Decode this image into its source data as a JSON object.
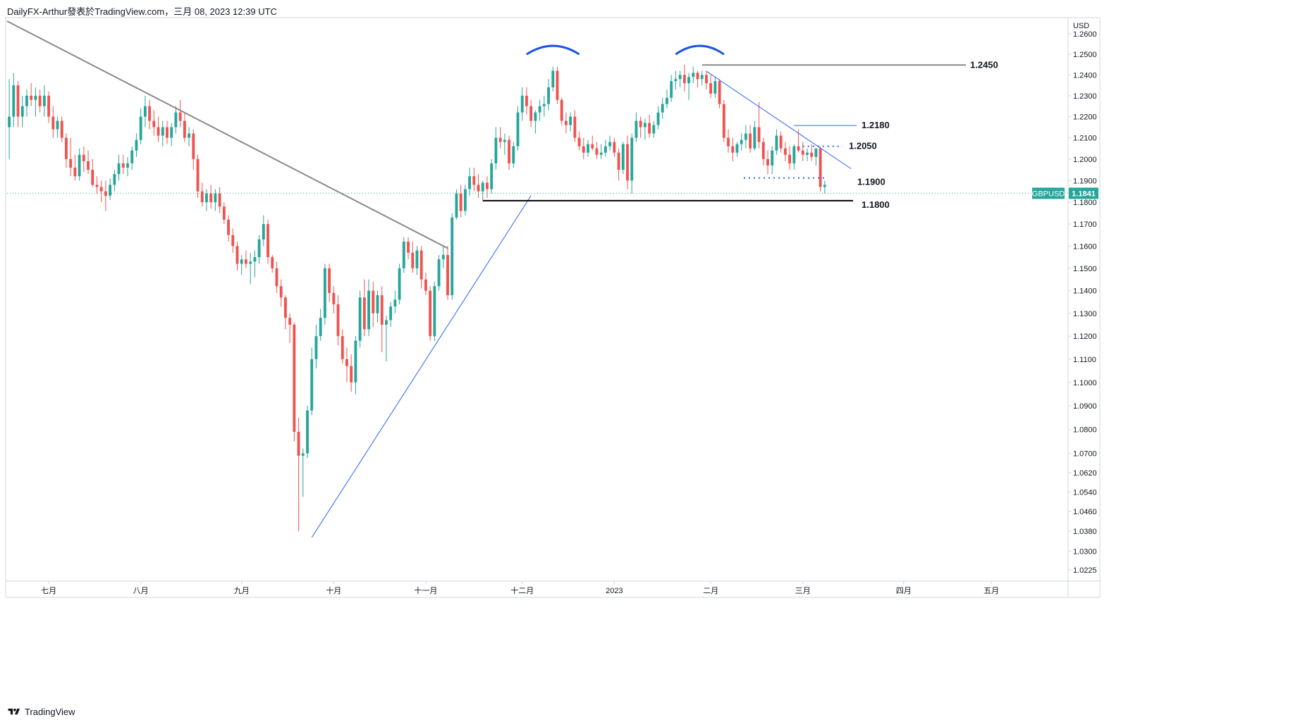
{
  "header": {
    "text": "DailyFX-Arthur發表於TradingView.com，三月 08, 2023 12:39 UTC"
  },
  "branding": {
    "name": "TradingView",
    "icon": "tradingview-logo-icon"
  },
  "colors": {
    "up": "#26a69a",
    "down": "#ef5350",
    "trend_grey": "#8a8a8a",
    "trend_blue": "#2962ff",
    "level_blue": "#2962ff",
    "support_black": "#000000",
    "price_tag": "#26a69a",
    "grid_axis": "#d1d4dc"
  },
  "chart_data": {
    "type": "candlestick",
    "symbol": "GBPUSD",
    "currency_label": "USD",
    "last_price": "1.1841",
    "price_axis": {
      "ticks": [
        "1.2600",
        "1.2500",
        "1.2400",
        "1.2300",
        "1.2200",
        "1.2100",
        "1.2000",
        "1.1900",
        "1.1800",
        "1.1700",
        "1.1600",
        "1.1500",
        "1.1400",
        "1.1300",
        "1.1200",
        "1.1100",
        "1.1000",
        "1.0900",
        "1.0800",
        "1.0700",
        "1.0620",
        "1.0540",
        "1.0460",
        "1.0380",
        "1.0300",
        "1.0225"
      ],
      "range": [
        1.018,
        1.268
      ],
      "scale": "log"
    },
    "time_axis": {
      "labels": [
        "七月",
        "八月",
        "九月",
        "十月",
        "十一月",
        "十二月",
        "2023",
        "二月",
        "三月",
        "四月",
        "五月"
      ],
      "label_index": [
        9,
        30,
        53,
        74,
        95,
        117,
        138,
        160,
        181,
        204,
        224
      ],
      "total_slots": 242
    },
    "levels": [
      {
        "label": "1.2450",
        "price": 1.2448
      },
      {
        "label": "1.2180",
        "price": 1.2158
      },
      {
        "label": "1.2050",
        "price": 1.206
      },
      {
        "label": "1.1900",
        "price": 1.1912
      },
      {
        "label": "1.1800",
        "price": 1.1807
      }
    ],
    "candles": [
      [
        1.215,
        1.238,
        1.2,
        1.22
      ],
      [
        1.22,
        1.241,
        1.215,
        1.235
      ],
      [
        1.235,
        1.237,
        1.215,
        1.22
      ],
      [
        1.22,
        1.23,
        1.215,
        1.225
      ],
      [
        1.225,
        1.233,
        1.22,
        1.23
      ],
      [
        1.23,
        1.236,
        1.225,
        1.228
      ],
      [
        1.228,
        1.234,
        1.22,
        1.23
      ],
      [
        1.23,
        1.233,
        1.222,
        1.225
      ],
      [
        1.225,
        1.235,
        1.22,
        1.23
      ],
      [
        1.23,
        1.232,
        1.217,
        1.22
      ],
      [
        1.22,
        1.225,
        1.21,
        1.214
      ],
      [
        1.214,
        1.22,
        1.21,
        1.218
      ],
      [
        1.218,
        1.22,
        1.208,
        1.21
      ],
      [
        1.21,
        1.212,
        1.196,
        1.2
      ],
      [
        1.2,
        1.21,
        1.192,
        1.196
      ],
      [
        1.196,
        1.202,
        1.19,
        1.192
      ],
      [
        1.192,
        1.205,
        1.19,
        1.202
      ],
      [
        1.202,
        1.206,
        1.194,
        1.199
      ],
      [
        1.199,
        1.204,
        1.193,
        1.195
      ],
      [
        1.195,
        1.2,
        1.187,
        1.188
      ],
      [
        1.188,
        1.192,
        1.184,
        1.187
      ],
      [
        1.187,
        1.19,
        1.18,
        1.185
      ],
      [
        1.185,
        1.19,
        1.176,
        1.183
      ],
      [
        1.183,
        1.191,
        1.181,
        1.188
      ],
      [
        1.188,
        1.195,
        1.185,
        1.193
      ],
      [
        1.193,
        1.202,
        1.19,
        1.198
      ],
      [
        1.198,
        1.202,
        1.193,
        1.196
      ],
      [
        1.196,
        1.201,
        1.192,
        1.198
      ],
      [
        1.198,
        1.206,
        1.195,
        1.204
      ],
      [
        1.204,
        1.212,
        1.201,
        1.209
      ],
      [
        1.209,
        1.224,
        1.207,
        1.22
      ],
      [
        1.22,
        1.23,
        1.215,
        1.225
      ],
      [
        1.225,
        1.228,
        1.214,
        1.218
      ],
      [
        1.218,
        1.223,
        1.211,
        1.215
      ],
      [
        1.215,
        1.22,
        1.208,
        1.211
      ],
      [
        1.211,
        1.218,
        1.206,
        1.215
      ],
      [
        1.215,
        1.218,
        1.207,
        1.21
      ],
      [
        1.21,
        1.217,
        1.206,
        1.215
      ],
      [
        1.215,
        1.225,
        1.212,
        1.222
      ],
      [
        1.222,
        1.228,
        1.215,
        1.218
      ],
      [
        1.218,
        1.222,
        1.208,
        1.21
      ],
      [
        1.21,
        1.215,
        1.206,
        1.212
      ],
      [
        1.212,
        1.214,
        1.195,
        1.2
      ],
      [
        1.2,
        1.202,
        1.182,
        1.185
      ],
      [
        1.185,
        1.189,
        1.178,
        1.18
      ],
      [
        1.18,
        1.186,
        1.176,
        1.184
      ],
      [
        1.184,
        1.188,
        1.177,
        1.18
      ],
      [
        1.18,
        1.186,
        1.176,
        1.184
      ],
      [
        1.184,
        1.187,
        1.175,
        1.178
      ],
      [
        1.178,
        1.18,
        1.17,
        1.172
      ],
      [
        1.172,
        1.174,
        1.162,
        1.165
      ],
      [
        1.165,
        1.168,
        1.157,
        1.16
      ],
      [
        1.16,
        1.162,
        1.149,
        1.152
      ],
      [
        1.152,
        1.156,
        1.147,
        1.154
      ],
      [
        1.154,
        1.158,
        1.15,
        1.152
      ],
      [
        1.152,
        1.157,
        1.143,
        1.153
      ],
      [
        1.153,
        1.158,
        1.146,
        1.155
      ],
      [
        1.155,
        1.165,
        1.152,
        1.163
      ],
      [
        1.163,
        1.174,
        1.16,
        1.17
      ],
      [
        1.17,
        1.172,
        1.152,
        1.155
      ],
      [
        1.155,
        1.156,
        1.148,
        1.15
      ],
      [
        1.15,
        1.153,
        1.139,
        1.142
      ],
      [
        1.142,
        1.145,
        1.133,
        1.137
      ],
      [
        1.137,
        1.138,
        1.123,
        1.128
      ],
      [
        1.128,
        1.13,
        1.117,
        1.125
      ],
      [
        1.125,
        1.126,
        1.075,
        1.079
      ],
      [
        1.079,
        1.085,
        1.038,
        1.069
      ],
      [
        1.069,
        1.072,
        1.052,
        1.07
      ],
      [
        1.07,
        1.09,
        1.068,
        1.088
      ],
      [
        1.088,
        1.115,
        1.086,
        1.11
      ],
      [
        1.11,
        1.125,
        1.106,
        1.12
      ],
      [
        1.12,
        1.132,
        1.118,
        1.128
      ],
      [
        1.128,
        1.152,
        1.125,
        1.15
      ],
      [
        1.15,
        1.152,
        1.135,
        1.139
      ],
      [
        1.139,
        1.142,
        1.13,
        1.134
      ],
      [
        1.134,
        1.138,
        1.116,
        1.12
      ],
      [
        1.12,
        1.123,
        1.108,
        1.11
      ],
      [
        1.11,
        1.115,
        1.1,
        1.107
      ],
      [
        1.107,
        1.112,
        1.096,
        1.1
      ],
      [
        1.1,
        1.12,
        1.095,
        1.118
      ],
      [
        1.118,
        1.14,
        1.115,
        1.137
      ],
      [
        1.137,
        1.145,
        1.12,
        1.123
      ],
      [
        1.123,
        1.145,
        1.12,
        1.14
      ],
      [
        1.14,
        1.144,
        1.124,
        1.13
      ],
      [
        1.13,
        1.14,
        1.126,
        1.138
      ],
      [
        1.138,
        1.142,
        1.113,
        1.125
      ],
      [
        1.125,
        1.129,
        1.109,
        1.127
      ],
      [
        1.127,
        1.135,
        1.124,
        1.133
      ],
      [
        1.133,
        1.14,
        1.13,
        1.136
      ],
      [
        1.136,
        1.152,
        1.134,
        1.15
      ],
      [
        1.15,
        1.164,
        1.148,
        1.162
      ],
      [
        1.162,
        1.164,
        1.154,
        1.157
      ],
      [
        1.157,
        1.162,
        1.148,
        1.15
      ],
      [
        1.15,
        1.16,
        1.147,
        1.158
      ],
      [
        1.158,
        1.16,
        1.141,
        1.145
      ],
      [
        1.145,
        1.148,
        1.138,
        1.14
      ],
      [
        1.14,
        1.142,
        1.118,
        1.12
      ],
      [
        1.12,
        1.144,
        1.118,
        1.142
      ],
      [
        1.142,
        1.156,
        1.14,
        1.154
      ],
      [
        1.154,
        1.16,
        1.15,
        1.156
      ],
      [
        1.156,
        1.16,
        1.136,
        1.138
      ],
      [
        1.138,
        1.175,
        1.136,
        1.173
      ],
      [
        1.173,
        1.186,
        1.172,
        1.184
      ],
      [
        1.184,
        1.188,
        1.173,
        1.176
      ],
      [
        1.176,
        1.188,
        1.174,
        1.186
      ],
      [
        1.186,
        1.196,
        1.183,
        1.192
      ],
      [
        1.192,
        1.196,
        1.185,
        1.188
      ],
      [
        1.188,
        1.193,
        1.182,
        1.185
      ],
      [
        1.185,
        1.19,
        1.181,
        1.189
      ],
      [
        1.189,
        1.192,
        1.182,
        1.186
      ],
      [
        1.186,
        1.2,
        1.184,
        1.198
      ],
      [
        1.198,
        1.215,
        1.195,
        1.21
      ],
      [
        1.21,
        1.215,
        1.205,
        1.208
      ],
      [
        1.208,
        1.212,
        1.202,
        1.209
      ],
      [
        1.209,
        1.211,
        1.195,
        1.198
      ],
      [
        1.198,
        1.208,
        1.196,
        1.206
      ],
      [
        1.206,
        1.225,
        1.204,
        1.222
      ],
      [
        1.222,
        1.234,
        1.218,
        1.23
      ],
      [
        1.23,
        1.234,
        1.221,
        1.225
      ],
      [
        1.225,
        1.228,
        1.215,
        1.218
      ],
      [
        1.218,
        1.223,
        1.212,
        1.222
      ],
      [
        1.222,
        1.228,
        1.218,
        1.225
      ],
      [
        1.225,
        1.23,
        1.22,
        1.226
      ],
      [
        1.226,
        1.238,
        1.223,
        1.234
      ],
      [
        1.234,
        1.244,
        1.232,
        1.242
      ],
      [
        1.242,
        1.244,
        1.226,
        1.228
      ],
      [
        1.228,
        1.229,
        1.216,
        1.218
      ],
      [
        1.218,
        1.222,
        1.212,
        1.216
      ],
      [
        1.216,
        1.222,
        1.213,
        1.22
      ],
      [
        1.22,
        1.223,
        1.208,
        1.21
      ],
      [
        1.21,
        1.213,
        1.204,
        1.206
      ],
      [
        1.206,
        1.21,
        1.2,
        1.203
      ],
      [
        1.203,
        1.209,
        1.201,
        1.207
      ],
      [
        1.207,
        1.211,
        1.204,
        1.205
      ],
      [
        1.205,
        1.208,
        1.2,
        1.202
      ],
      [
        1.202,
        1.207,
        1.2,
        1.203
      ],
      [
        1.203,
        1.209,
        1.201,
        1.206
      ],
      [
        1.206,
        1.211,
        1.204,
        1.208
      ],
      [
        1.208,
        1.21,
        1.201,
        1.203
      ],
      [
        1.203,
        1.205,
        1.19,
        1.195
      ],
      [
        1.195,
        1.208,
        1.193,
        1.207
      ],
      [
        1.207,
        1.211,
        1.186,
        1.19
      ],
      [
        1.19,
        1.212,
        1.184,
        1.21
      ],
      [
        1.21,
        1.222,
        1.208,
        1.218
      ],
      [
        1.218,
        1.22,
        1.21,
        1.215
      ],
      [
        1.215,
        1.219,
        1.209,
        1.217
      ],
      [
        1.217,
        1.221,
        1.21,
        1.212
      ],
      [
        1.212,
        1.218,
        1.21,
        1.216
      ],
      [
        1.216,
        1.225,
        1.214,
        1.222
      ],
      [
        1.222,
        1.229,
        1.219,
        1.226
      ],
      [
        1.226,
        1.233,
        1.224,
        1.229
      ],
      [
        1.229,
        1.24,
        1.227,
        1.237
      ],
      [
        1.237,
        1.242,
        1.233,
        1.238
      ],
      [
        1.238,
        1.242,
        1.234,
        1.24
      ],
      [
        1.24,
        1.245,
        1.232,
        1.236
      ],
      [
        1.236,
        1.241,
        1.228,
        1.239
      ],
      [
        1.239,
        1.244,
        1.236,
        1.241
      ],
      [
        1.241,
        1.242,
        1.234,
        1.238
      ],
      [
        1.238,
        1.242,
        1.235,
        1.24
      ],
      [
        1.24,
        1.242,
        1.233,
        1.236
      ],
      [
        1.236,
        1.24,
        1.229,
        1.231
      ],
      [
        1.231,
        1.239,
        1.229,
        1.237
      ],
      [
        1.237,
        1.238,
        1.224,
        1.226
      ],
      [
        1.226,
        1.228,
        1.208,
        1.21
      ],
      [
        1.21,
        1.214,
        1.203,
        1.206
      ],
      [
        1.206,
        1.21,
        1.199,
        1.203
      ],
      [
        1.203,
        1.208,
        1.201,
        1.207
      ],
      [
        1.207,
        1.212,
        1.204,
        1.209
      ],
      [
        1.209,
        1.216,
        1.205,
        1.212
      ],
      [
        1.212,
        1.216,
        1.203,
        1.205
      ],
      [
        1.205,
        1.218,
        1.204,
        1.215
      ],
      [
        1.215,
        1.227,
        1.205,
        1.208
      ],
      [
        1.208,
        1.21,
        1.197,
        1.2
      ],
      [
        1.2,
        1.204,
        1.193,
        1.197
      ],
      [
        1.197,
        1.206,
        1.193,
        1.204
      ],
      [
        1.204,
        1.214,
        1.202,
        1.211
      ],
      [
        1.211,
        1.213,
        1.203,
        1.205
      ],
      [
        1.205,
        1.208,
        1.199,
        1.202
      ],
      [
        1.202,
        1.206,
        1.195,
        1.198
      ],
      [
        1.198,
        1.207,
        1.195,
        1.206
      ],
      [
        1.206,
        1.214,
        1.203,
        1.204
      ],
      [
        1.204,
        1.208,
        1.199,
        1.202
      ],
      [
        1.202,
        1.205,
        1.199,
        1.203
      ],
      [
        1.203,
        1.207,
        1.199,
        1.201
      ],
      [
        1.201,
        1.205,
        1.197,
        1.205
      ],
      [
        1.205,
        1.206,
        1.185,
        1.187
      ],
      [
        1.187,
        1.19,
        1.184,
        1.188
      ]
    ]
  }
}
